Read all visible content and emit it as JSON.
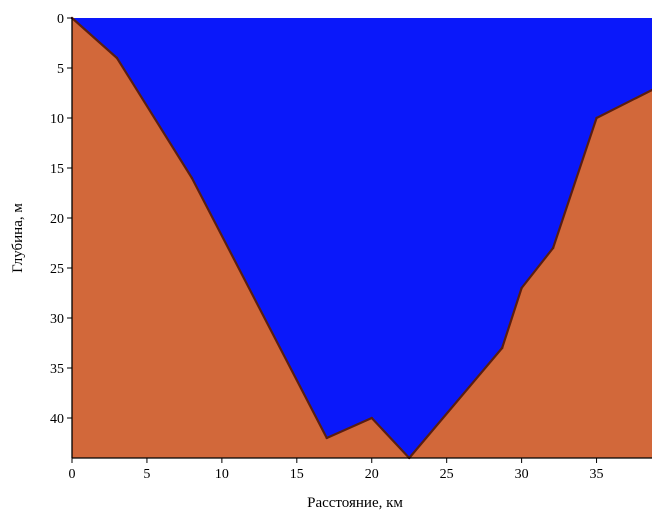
{
  "chart_data": {
    "type": "area",
    "title": "",
    "xlabel": "Расстояние, км",
    "ylabel": "Глубина, м",
    "xlim": [
      0,
      38.7
    ],
    "ylim": [
      0,
      44
    ],
    "y_inverted": true,
    "x_ticks": [
      0,
      5,
      10,
      15,
      20,
      25,
      30,
      35
    ],
    "y_ticks": [
      0,
      5,
      10,
      15,
      20,
      25,
      30,
      35,
      40
    ],
    "grid": false,
    "legend": "none",
    "colors": {
      "water": "#0a18fa",
      "seabed": "#d2683a",
      "bottom_line": "#5a1e10"
    },
    "series": [
      {
        "x": [
          0,
          3,
          8,
          17,
          20,
          22.5,
          28.7,
          30,
          32.1,
          35,
          38.7
        ],
        "y": [
          0,
          4,
          16,
          42,
          40,
          44,
          33,
          27,
          23,
          10,
          7.2
        ]
      }
    ]
  }
}
